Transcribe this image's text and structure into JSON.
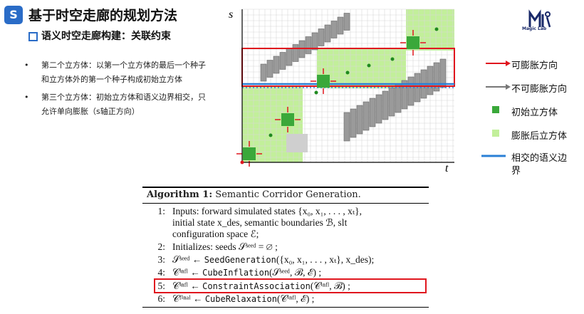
{
  "header": {
    "title": "基于时空走廊的规划方法",
    "icon": "s-logo-icon",
    "subtitle": "语义时空走廊构建：关联约束"
  },
  "bullets": [
    {
      "line1": "第二个立方体：以第一个立方体的最后一个种子",
      "line2": "和立方体外的第一个种子构成初始立方体"
    },
    {
      "line1": "第三个立方体：初始立方体和语义边界相交，只",
      "line2": "允许单向膨胀（s轴正方向）"
    }
  ],
  "logo": {
    "text": "Magic Lab",
    "icon": "magic-lab-logo-icon"
  },
  "figure": {
    "ylabel": "s",
    "xlabel": "t"
  },
  "legend": [
    {
      "label": "可膨胀方向",
      "kind": "arrow",
      "color": "#e0161e"
    },
    {
      "label": "不可膨胀方向",
      "kind": "arrow",
      "color": "#777777"
    },
    {
      "label": "初始立方体",
      "kind": "square",
      "color": "#3aa83a"
    },
    {
      "label": "膨胀后立方体",
      "kind": "square",
      "color": "#c2ef9a"
    },
    {
      "label": "相交的语义边",
      "label2": "界",
      "kind": "line",
      "color": "#2a7fd6"
    }
  ],
  "algorithm": {
    "title_bold": "Algorithm 1:",
    "title_rest": " Semantic Corridor Generation.",
    "lines": [
      {
        "num": "1:",
        "text": "Inputs: forward simulated states {x₀, x₁, . . . , xₜ},"
      },
      {
        "num": "",
        "text": "initial state x_des, semantic boundaries ℬ, slt"
      },
      {
        "num": "",
        "text": "configuration space ℰ;"
      },
      {
        "num": "2:",
        "text": "Initializes: seeds 𝒮ˢᵉᵉᵈ = ∅ ;"
      },
      {
        "num": "3:",
        "pre": "𝒮ˢᵉᵉᵈ ← ",
        "code": "SeedGeneration",
        "post": "({x₀, x₁, . . . , xₜ}, x_des);"
      },
      {
        "num": "4:",
        "pre": "𝒞ⁱⁿᶠˡ ← ",
        "code": "CubeInflation",
        "post": "(𝒮ˢᵉᵉᵈ, ℬ, ℰ) ;"
      },
      {
        "num": "5:",
        "pre": "𝒞ⁱⁿᶠˡ ← ",
        "code": "ConstraintAssociation",
        "post": "(𝒞ⁱⁿᶠˡ, ℬ) ;"
      },
      {
        "num": "6:",
        "pre": "𝒞ᶠⁱⁿᵃˡ ← ",
        "code": "CubeRelaxation",
        "post": "(𝒞ⁱⁿᶠˡ, ℰ) ;"
      }
    ]
  }
}
